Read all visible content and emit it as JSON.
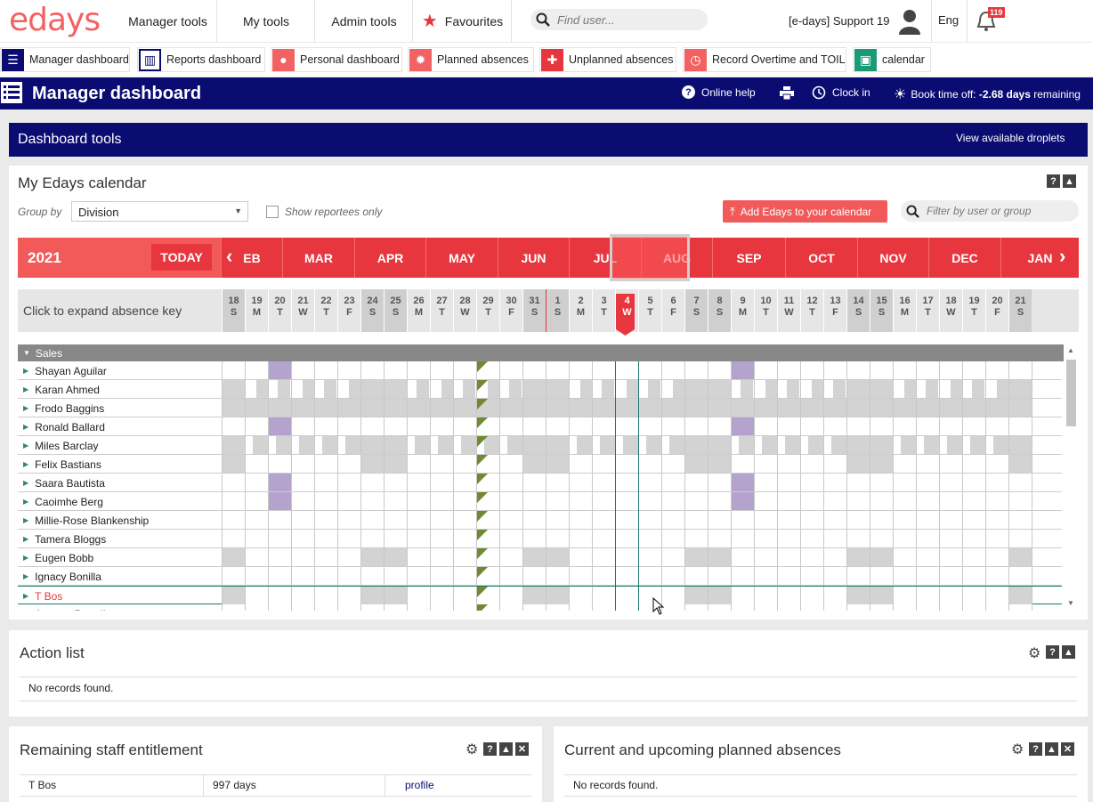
{
  "brand": "edays",
  "topnav": {
    "items": [
      "Manager tools",
      "My tools",
      "Admin tools"
    ],
    "favourites": "Favourites",
    "search_placeholder": "Find user...",
    "user_name": "[e-days] Support 19",
    "language": "Eng",
    "notifications": "119"
  },
  "quicklinks": [
    {
      "label": "Manager dashboard",
      "color": "#0b0c72",
      "icon": "list-icon"
    },
    {
      "label": "Reports dashboard",
      "color": "#0b0c72",
      "icon": "chart-icon"
    },
    {
      "label": "Personal dashboard",
      "color": "#f36262",
      "icon": "person-icon"
    },
    {
      "label": "Planned absences",
      "color": "#f36262",
      "icon": "sun-icon"
    },
    {
      "label": "Unplanned absences",
      "color": "#e8363f",
      "icon": "plus-icon"
    },
    {
      "label": "Record Overtime and TOIL",
      "color": "#f36262",
      "icon": "clock-icon"
    },
    {
      "label": "calendar",
      "color": "#1a9a77",
      "icon": "calendar-icon"
    }
  ],
  "header": {
    "title": "Manager dashboard",
    "online_help": "Online help",
    "clock_in": "Clock in",
    "book_time_off": "Book time off:",
    "days_remaining": "-2.68 days",
    "remaining_suffix": "remaining"
  },
  "dashboard_tools": {
    "title": "Dashboard tools",
    "view_droplets": "View available droplets"
  },
  "calendar": {
    "title": "My Edays calendar",
    "group_by_label": "Group by",
    "group_by_value": "Division",
    "show_reportees": "Show reportees only",
    "add_button": "Add Edays to your calendar",
    "filter_placeholder": "Filter by user or group",
    "year": "2021",
    "today_button": "TODAY",
    "months": [
      "EB",
      "MAR",
      "APR",
      "MAY",
      "JUN",
      "JUL",
      "AUG",
      "SEP",
      "OCT",
      "NOV",
      "DEC",
      "JAN"
    ],
    "absence_key": "Click to expand absence key",
    "days": [
      {
        "d": "18",
        "w": "S",
        "we": true
      },
      {
        "d": "19",
        "w": "M"
      },
      {
        "d": "20",
        "w": "T"
      },
      {
        "d": "21",
        "w": "W"
      },
      {
        "d": "22",
        "w": "T"
      },
      {
        "d": "23",
        "w": "F"
      },
      {
        "d": "24",
        "w": "S",
        "we": true
      },
      {
        "d": "25",
        "w": "S",
        "we": true
      },
      {
        "d": "26",
        "w": "M"
      },
      {
        "d": "27",
        "w": "T"
      },
      {
        "d": "28",
        "w": "W"
      },
      {
        "d": "29",
        "w": "T"
      },
      {
        "d": "30",
        "w": "F"
      },
      {
        "d": "31",
        "w": "S",
        "we": true
      },
      {
        "d": "1",
        "w": "S",
        "we": true
      },
      {
        "d": "2",
        "w": "M"
      },
      {
        "d": "3",
        "w": "T"
      },
      {
        "d": "4",
        "w": "W",
        "today": true
      },
      {
        "d": "5",
        "w": "T"
      },
      {
        "d": "6",
        "w": "F"
      },
      {
        "d": "7",
        "w": "S",
        "we": true
      },
      {
        "d": "8",
        "w": "S",
        "we": true
      },
      {
        "d": "9",
        "w": "M"
      },
      {
        "d": "10",
        "w": "T"
      },
      {
        "d": "11",
        "w": "W"
      },
      {
        "d": "12",
        "w": "T"
      },
      {
        "d": "13",
        "w": "F"
      },
      {
        "d": "14",
        "w": "S",
        "we": true
      },
      {
        "d": "15",
        "w": "S",
        "we": true
      },
      {
        "d": "16",
        "w": "M"
      },
      {
        "d": "17",
        "w": "T"
      },
      {
        "d": "18",
        "w": "W"
      },
      {
        "d": "19",
        "w": "T"
      },
      {
        "d": "20",
        "w": "F"
      },
      {
        "d": "21",
        "w": "S",
        "we": true
      }
    ],
    "group": "Sales",
    "people": [
      "Shayan Aguilar",
      "Karan Ahmed",
      "Frodo Baggins",
      "Ronald Ballard",
      "Miles Barclay",
      "Felix Bastians",
      "Saara Bautista",
      "Caoimhe Berg",
      "Millie-Rose Blankenship",
      "Tamera Bloggs",
      "Eugen Bobb",
      "Ignacy Bonilla",
      "T Bos",
      "Amman Broadhurst"
    ],
    "highlighted_person": "T Bos"
  },
  "action_list": {
    "title": "Action list",
    "empty": "No records found."
  },
  "entitlement": {
    "title": "Remaining staff entitlement",
    "rows": [
      {
        "name": "T Bos",
        "days": "997 days",
        "link": "profile"
      }
    ]
  },
  "planned": {
    "title": "Current and upcoming planned absences",
    "empty": "No records found."
  }
}
